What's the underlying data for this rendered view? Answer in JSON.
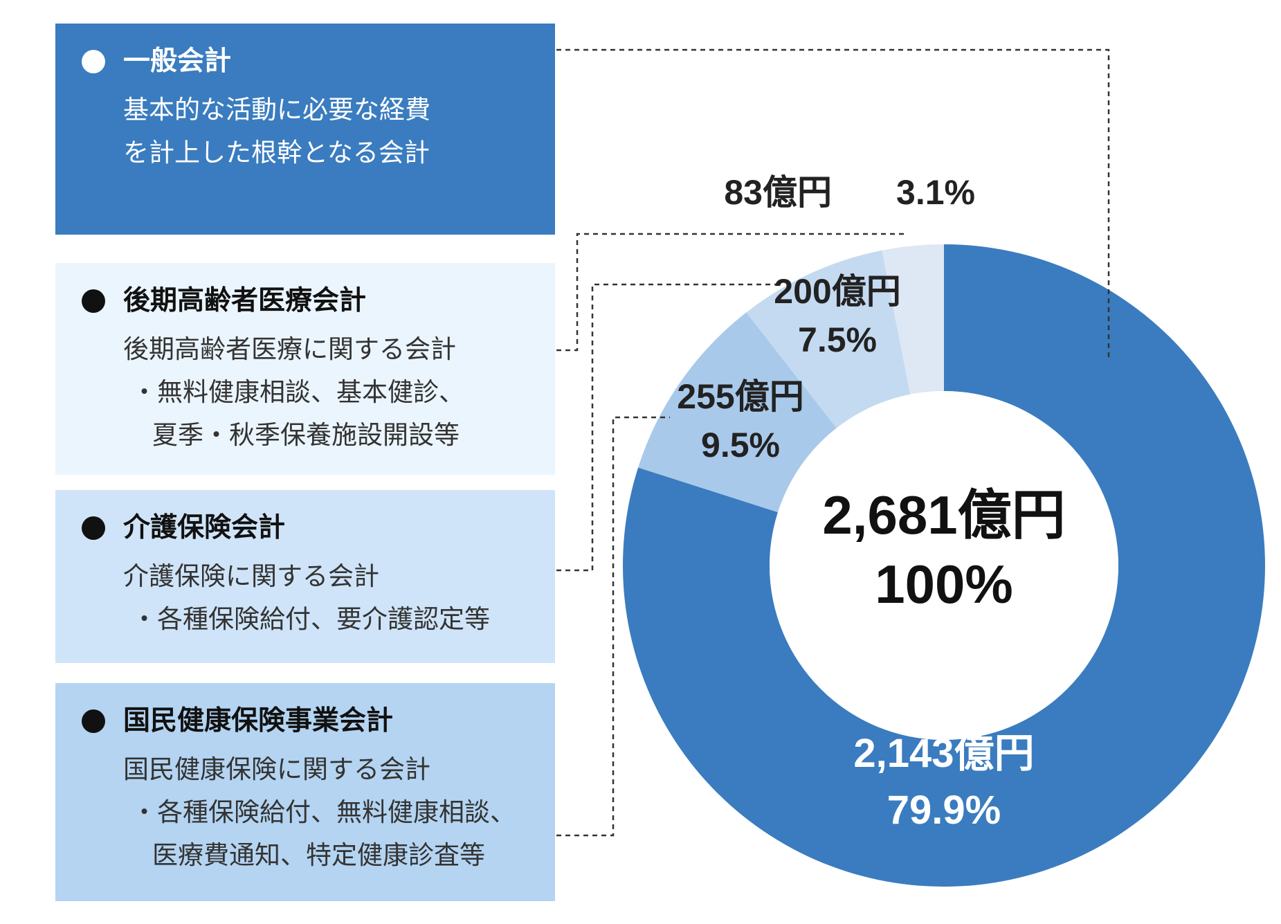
{
  "boxes": [
    {
      "title": "一般会計",
      "lines": [
        "基本的な活動に必要な経費",
        "を計上した根幹となる会計"
      ]
    },
    {
      "title": "後期高齢者医療会計",
      "lines": [
        "後期高齢者医療に関する会計",
        "・無料健康相談、基本健診、",
        "夏季・秋季保養施設開設等"
      ]
    },
    {
      "title": "介護保険会計",
      "lines": [
        "介護保険に関する会計",
        "・各種保険給付、要介護認定等"
      ]
    },
    {
      "title": "国民健康保険事業会計",
      "lines": [
        "国民健康保険に関する会計",
        "・各種保険給付、無料健康相談、",
        "医療費通知、特定健康診査等"
      ]
    }
  ],
  "chart_data": {
    "type": "pie",
    "variant": "donut",
    "total": {
      "amount": "2,681億円",
      "percent": "100%"
    },
    "slices": [
      {
        "amount_label": "2,143億円",
        "percent_label": "79.9%",
        "value": 2143,
        "percent": 79.9,
        "color": "#3a7cbf"
      },
      {
        "amount_label": "255億円",
        "percent_label": "9.5%",
        "value": 255,
        "percent": 9.5,
        "color": "#a9c9ea"
      },
      {
        "amount_label": "200億円",
        "percent_label": "7.5%",
        "value": 200,
        "percent": 7.5,
        "color": "#c4daf1"
      },
      {
        "amount_label": "83億円",
        "percent_label": "3.1%",
        "value": 83,
        "percent": 3.1,
        "color": "#dde8f4"
      }
    ]
  },
  "colors": {
    "accent": "#3a7cbf",
    "dark_text": "#333333",
    "leader_line": "#333333"
  }
}
